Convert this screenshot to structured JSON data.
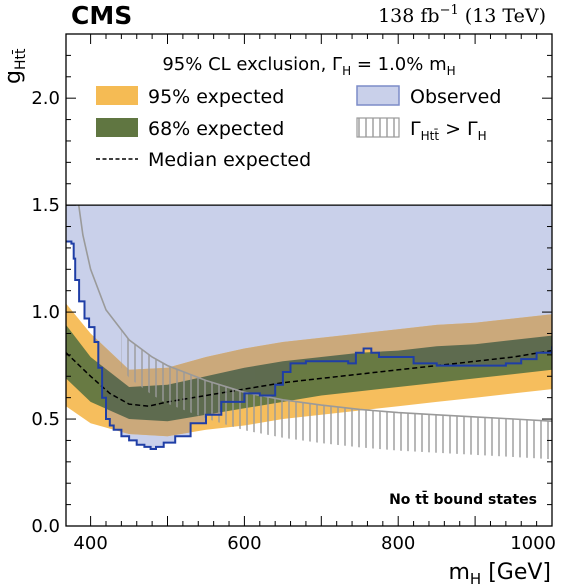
{
  "header": {
    "experiment": "CMS",
    "lumi_value": "138 fb",
    "lumi_exp": "−1",
    "energy": " (13 TeV)"
  },
  "chart_data": {
    "type": "area",
    "ylabel": {
      "main": "g",
      "sub": "Htt̄"
    },
    "xlabel": {
      "main": "m",
      "sub": "H",
      "unit": " [GeV]"
    },
    "xlim": [
      368,
      1000
    ],
    "ylim": [
      0,
      2.3
    ],
    "x_ticks": [
      400,
      600,
      800,
      1000
    ],
    "y_ticks": [
      0.0,
      0.5,
      1.0,
      1.5,
      2.0
    ],
    "x_tick_labels": [
      "400",
      "600",
      "800",
      "1000"
    ],
    "y_tick_labels": [
      "0.0",
      "0.5",
      "1.0",
      "1.5",
      "2.0"
    ],
    "plot_ceiling": 1.5,
    "legend": {
      "title": {
        "pre": "95% CL exclusion, Γ",
        "sub1": "H",
        "mid": " = 1.0% m",
        "sub2": "H"
      },
      "band95": "95% expected",
      "band68": "68% expected",
      "median": "Median expected",
      "observed": "Observed",
      "width": {
        "pre": "Γ",
        "sub1": "Htt̄",
        "mid": " > Γ",
        "sub2": "H"
      }
    },
    "annotation": "No tt̄ bound states",
    "colors": {
      "band95": "#f5bb54",
      "band68": "#607641",
      "observed_fill": "#c9d0ea",
      "observed_line": "#1f3ea6",
      "median": "#000000",
      "width_line": "#9a9a9a",
      "overlap95": "#c7a77f",
      "overlap68": "#5e6a52"
    },
    "series": [
      {
        "name": "Median expected",
        "x": [
          368,
          400,
          425,
          450,
          475,
          500,
          550,
          600,
          650,
          700,
          750,
          800,
          850,
          900,
          950,
          1000
        ],
        "y": [
          0.81,
          0.7,
          0.62,
          0.57,
          0.56,
          0.58,
          0.61,
          0.64,
          0.67,
          0.69,
          0.71,
          0.73,
          0.75,
          0.77,
          0.79,
          0.82
        ]
      },
      {
        "name": "68% expected",
        "x": [
          368,
          400,
          450,
          500,
          550,
          600,
          650,
          700,
          750,
          800,
          850,
          900,
          950,
          1000
        ],
        "lower": [
          0.69,
          0.58,
          0.5,
          0.49,
          0.52,
          0.55,
          0.58,
          0.61,
          0.63,
          0.65,
          0.67,
          0.69,
          0.71,
          0.73
        ],
        "upper": [
          0.94,
          0.79,
          0.65,
          0.66,
          0.7,
          0.74,
          0.77,
          0.79,
          0.81,
          0.82,
          0.84,
          0.85,
          0.87,
          0.89
        ]
      },
      {
        "name": "95% expected",
        "x": [
          368,
          400,
          450,
          500,
          550,
          600,
          650,
          700,
          750,
          800,
          850,
          900,
          950,
          1000
        ],
        "lower": [
          0.56,
          0.48,
          0.43,
          0.42,
          0.45,
          0.47,
          0.5,
          0.52,
          0.54,
          0.56,
          0.58,
          0.6,
          0.62,
          0.64
        ],
        "upper": [
          1.04,
          0.9,
          0.73,
          0.74,
          0.79,
          0.83,
          0.86,
          0.88,
          0.9,
          0.92,
          0.94,
          0.95,
          0.97,
          0.99
        ]
      },
      {
        "name": "Observed",
        "x": [
          368,
          375,
          378,
          380,
          385,
          392,
          398,
          405,
          410,
          415,
          420,
          425,
          430,
          440,
          450,
          460,
          470,
          478,
          485,
          495,
          510,
          530,
          550,
          570,
          600,
          620,
          640,
          650,
          660,
          680,
          700,
          720,
          735,
          745,
          755,
          765,
          775,
          800,
          820,
          850,
          880,
          900,
          920,
          940,
          960,
          980,
          1000
        ],
        "y": [
          1.33,
          1.32,
          1.25,
          1.15,
          1.05,
          0.97,
          0.93,
          0.86,
          0.74,
          0.6,
          0.5,
          0.47,
          0.45,
          0.42,
          0.4,
          0.38,
          0.37,
          0.36,
          0.37,
          0.39,
          0.42,
          0.48,
          0.52,
          0.58,
          0.62,
          0.61,
          0.66,
          0.72,
          0.76,
          0.77,
          0.77,
          0.77,
          0.76,
          0.81,
          0.83,
          0.81,
          0.79,
          0.79,
          0.76,
          0.75,
          0.75,
          0.75,
          0.75,
          0.76,
          0.78,
          0.81,
          0.84
        ]
      },
      {
        "name": "Γ_Htt̄ > Γ_H",
        "x": [
          370,
          380,
          390,
          400,
          420,
          450,
          480,
          500,
          550,
          600,
          650,
          700,
          750,
          800,
          850,
          900,
          950,
          1000
        ],
        "y": [
          2.1,
          1.62,
          1.36,
          1.2,
          1.01,
          0.87,
          0.79,
          0.75,
          0.68,
          0.625,
          0.59,
          0.565,
          0.545,
          0.53,
          0.52,
          0.51,
          0.5,
          0.49
        ]
      }
    ]
  }
}
